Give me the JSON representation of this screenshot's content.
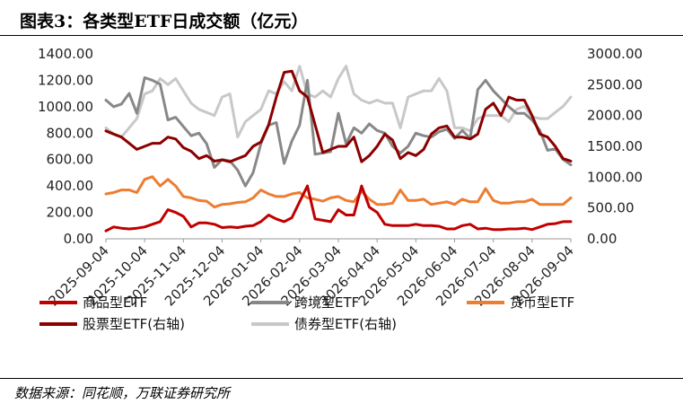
{
  "title": "图表3：各类型ETF日成交额（亿元）",
  "source": "数据来源：同花顺，万联证券研究所",
  "chart_data": {
    "type": "line",
    "x_ticks": [
      "2025-09-04",
      "2025-10-04",
      "2025-11-04",
      "2025-12-04",
      "2026-01-04",
      "2026-02-04",
      "2026-03-04",
      "2026-04-04",
      "2026-05-04",
      "2026-06-04",
      "2026-07-04",
      "2026-08-04",
      "2026-09-04"
    ],
    "y_left": {
      "ticks": [
        "0.00",
        "200.00",
        "400.00",
        "600.00",
        "800.00",
        "1000.00",
        "1200.00",
        "1400.00"
      ],
      "ylim": [
        0,
        1400
      ]
    },
    "y_right": {
      "ticks": [
        "0.00",
        "500.00",
        "1000.00",
        "1500.00",
        "2000.00",
        "2500.00",
        "3000.00"
      ],
      "ylim": [
        0,
        3000
      ]
    },
    "series": [
      {
        "name": "商品型ETF",
        "axis": "left",
        "color": "#c00000",
        "width": 3,
        "values": [
          60,
          90,
          80,
          75,
          80,
          90,
          110,
          130,
          220,
          200,
          170,
          90,
          120,
          120,
          110,
          85,
          90,
          85,
          95,
          100,
          130,
          180,
          150,
          130,
          160,
          280,
          400,
          150,
          140,
          130,
          220,
          180,
          180,
          400,
          240,
          200,
          110,
          100,
          100,
          100,
          110,
          100,
          100,
          95,
          75,
          75,
          100,
          110,
          75,
          80,
          70,
          70,
          75,
          75,
          80,
          70,
          90,
          110,
          115,
          130,
          130
        ]
      },
      {
        "name": "跨境型ETF",
        "axis": "left",
        "color": "#888888",
        "width": 3,
        "values": [
          1050,
          1000,
          1020,
          1100,
          950,
          1220,
          1200,
          1170,
          900,
          920,
          850,
          780,
          800,
          720,
          540,
          600,
          590,
          520,
          400,
          500,
          720,
          860,
          880,
          570,
          740,
          860,
          1200,
          640,
          650,
          660,
          950,
          720,
          840,
          800,
          870,
          820,
          800,
          700,
          650,
          700,
          800,
          780,
          770,
          810,
          830,
          760,
          820,
          760,
          1130,
          1200,
          1120,
          1060,
          1000,
          950,
          950,
          900,
          820,
          670,
          680,
          600,
          560
        ]
      },
      {
        "name": "货币型ETF",
        "axis": "left",
        "color": "#ed7d31",
        "width": 3,
        "values": [
          340,
          350,
          370,
          370,
          350,
          450,
          470,
          400,
          450,
          400,
          320,
          310,
          290,
          285,
          240,
          260,
          265,
          275,
          280,
          310,
          370,
          340,
          320,
          320,
          340,
          350,
          310,
          300,
          285,
          310,
          320,
          290,
          280,
          360,
          300,
          260,
          260,
          270,
          370,
          290,
          290,
          300,
          260,
          270,
          280,
          260,
          300,
          280,
          280,
          380,
          290,
          270,
          270,
          280,
          280,
          300,
          260,
          260,
          260,
          260,
          310
        ]
      },
      {
        "name": "股票型ETF(右轴)",
        "axis": "right",
        "color": "#8b0000",
        "width": 3,
        "values": [
          1750,
          1700,
          1650,
          1550,
          1450,
          1500,
          1550,
          1550,
          1650,
          1620,
          1480,
          1420,
          1300,
          1350,
          1260,
          1280,
          1250,
          1300,
          1350,
          1500,
          1570,
          1850,
          2300,
          2700,
          2720,
          2400,
          2300,
          1850,
          1400,
          1450,
          1500,
          1500,
          1650,
          1250,
          1350,
          1500,
          1700,
          1600,
          1300,
          1400,
          1350,
          1450,
          1700,
          1800,
          1830,
          1650,
          1650,
          1620,
          1700,
          2100,
          2200,
          2000,
          2300,
          2250,
          2250,
          2000,
          1700,
          1650,
          1500,
          1300,
          1260
        ]
      },
      {
        "name": "债券型ETF(右轴)",
        "axis": "right",
        "color": "#c8c8c8",
        "width": 3,
        "values": [
          1800,
          1700,
          1650,
          1800,
          1950,
          2350,
          2400,
          2600,
          2500,
          2600,
          2400,
          2200,
          2100,
          2050,
          2000,
          2300,
          2350,
          1650,
          1900,
          2000,
          2100,
          2400,
          2350,
          2550,
          2400,
          2800,
          2350,
          2300,
          2400,
          2300,
          2600,
          2800,
          2350,
          2250,
          2200,
          2250,
          2200,
          2200,
          1800,
          2300,
          2350,
          2400,
          2400,
          2600,
          2400,
          1800,
          1800,
          1750,
          1950,
          2000,
          2000,
          2000,
          1900,
          2100,
          2150,
          1980,
          1950,
          1950,
          2050,
          2150,
          2300
        ]
      }
    ]
  },
  "legend": [
    {
      "label": "商品型ETF",
      "color": "#c00000"
    },
    {
      "label": "跨境型ETF",
      "color": "#888888"
    },
    {
      "label": "货币型ETF",
      "color": "#ed7d31"
    },
    {
      "label": "股票型ETF(右轴)",
      "color": "#8b0000"
    },
    {
      "label": "债券型ETF(右轴)",
      "color": "#c8c8c8"
    }
  ]
}
